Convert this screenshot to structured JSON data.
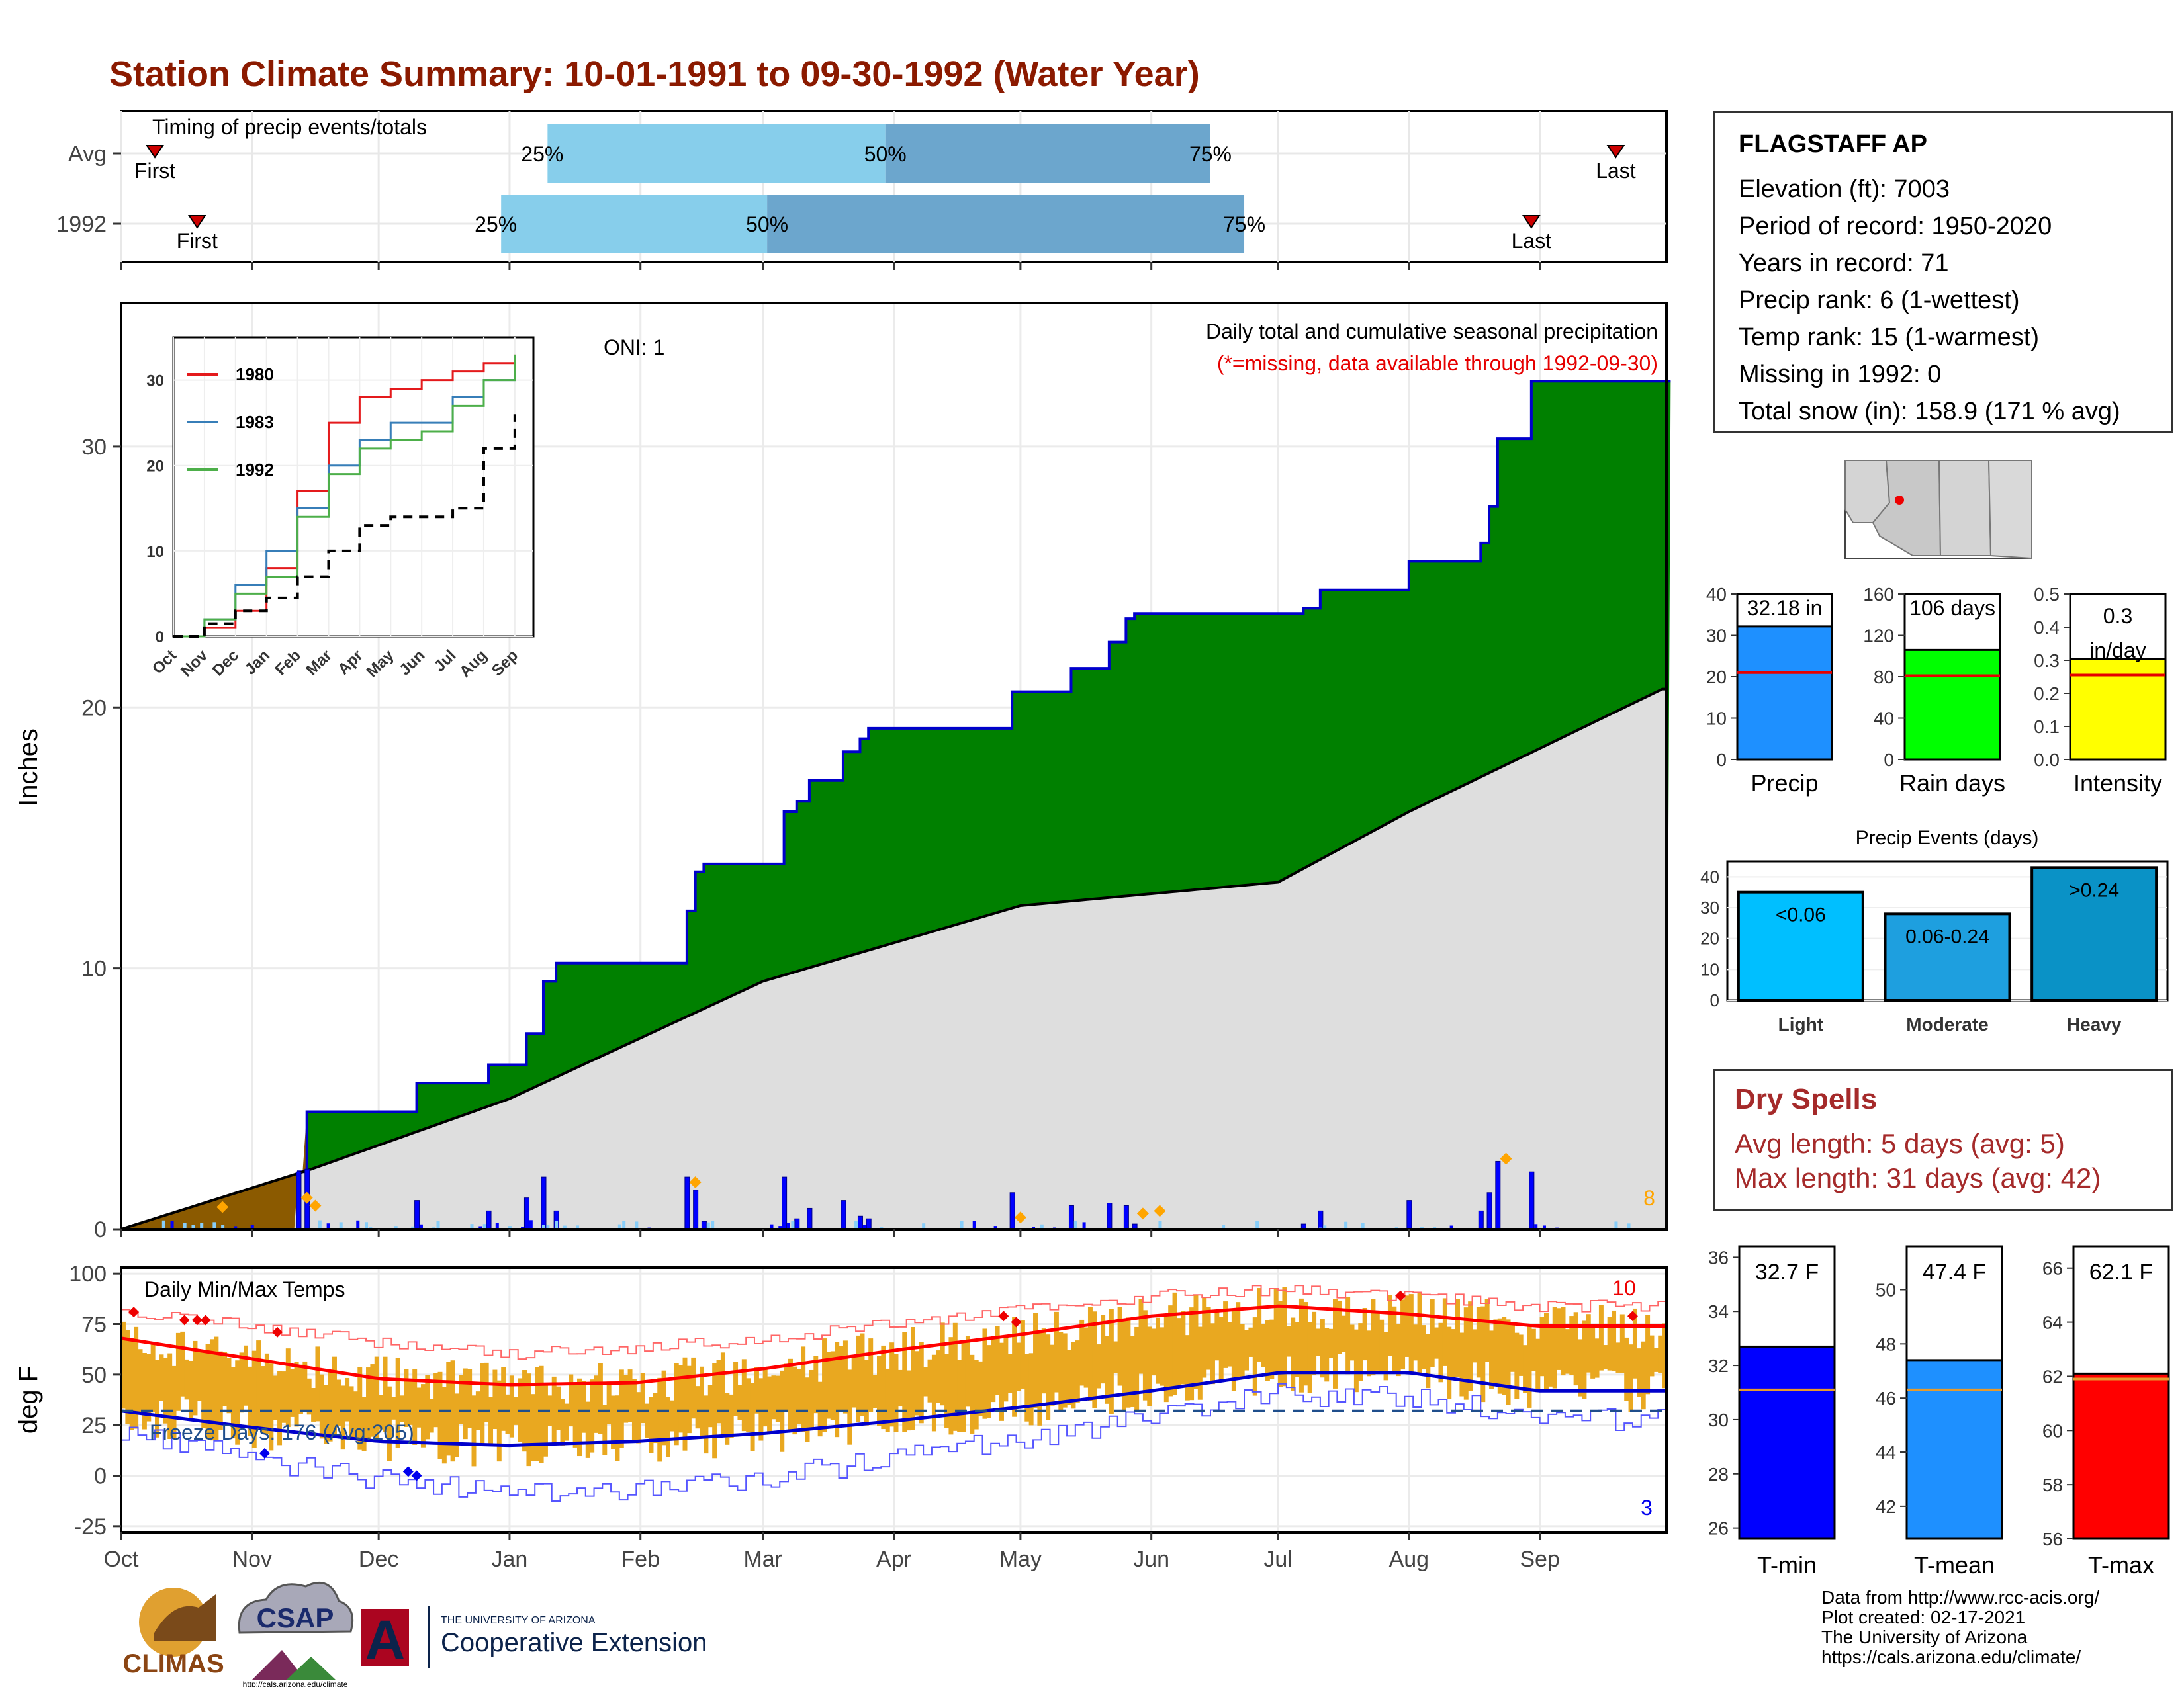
{
  "title": "Station Climate Summary: 10-01-1991 to 09-30-1992 (Water Year)",
  "timing": {
    "label": "Timing of precip events/totals",
    "rows": [
      {
        "name": "Avg",
        "first_day": 8,
        "q25_day": 101,
        "q50_day": 181,
        "q75_day": 258,
        "last_day": 354,
        "first_label": "First",
        "last_label": "Last",
        "q25_label": "25%",
        "q50_label": "50%",
        "q75_label": "75%"
      },
      {
        "name": "1992",
        "first_day": 18,
        "q25_day": 90,
        "q50_day": 153,
        "q75_day": 266,
        "last_day": 334,
        "first_label": "First",
        "last_label": "Last",
        "q25_label": "25%",
        "q50_label": "50%",
        "q75_label": "75%"
      }
    ]
  },
  "precip_chart": {
    "annotation_right": "Daily total and cumulative seasonal precipitation",
    "annotation_missing": "(*=missing, data available through 1992-09-30)",
    "oni_label": "ONI: 1",
    "ylabel": "Inches",
    "y_ticks": [
      "0",
      "10",
      "20",
      "30"
    ],
    "corner_count": "8",
    "months": [
      "Oct",
      "Nov",
      "Dec",
      "Jan",
      "Feb",
      "Mar",
      "Apr",
      "May",
      "Jun",
      "Jul",
      "Aug",
      "Sep"
    ]
  },
  "inset_chart": {
    "legend": [
      {
        "name": "1980",
        "color": "#e41a1c"
      },
      {
        "name": "1983",
        "color": "#377eb8"
      },
      {
        "name": "1992",
        "color": "#4daf4a"
      }
    ],
    "y_ticks": [
      "0",
      "10",
      "20",
      "30"
    ],
    "months": [
      "Oct",
      "Nov",
      "Dec",
      "Jan",
      "Feb",
      "Mar",
      "Apr",
      "May",
      "Jun",
      "Jul",
      "Aug",
      "Sep"
    ]
  },
  "temp_chart": {
    "label": "Daily Min/Max Temps",
    "freeze_label": "Freeze Days: 176 (Avg:205)",
    "ylabel": "deg F",
    "y_ticks": [
      "-25",
      "0",
      "25",
      "50",
      "75",
      "100"
    ],
    "high_count": "10",
    "low_count": "3",
    "months": [
      "Oct",
      "Nov",
      "Dec",
      "Jan",
      "Feb",
      "Mar",
      "Apr",
      "May",
      "Jun",
      "Jul",
      "Aug",
      "Sep"
    ]
  },
  "station": {
    "name": "FLAGSTAFF AP",
    "lines": [
      "Elevation (ft): 7003",
      "Period of record: 1950-2020",
      "Years in record: 71",
      "Precip rank: 6 (1-wettest)",
      "Temp rank: 15 (1-warmest)",
      "Missing in 1992: 0",
      "Total snow (in): 158.9 (171 % avg)"
    ]
  },
  "summary_bars": [
    {
      "name": "Precip",
      "value_label": "32.18 in",
      "value": 32.18,
      "avg": 21,
      "ymax": 40,
      "ticks": [
        "0",
        "10",
        "20",
        "30",
        "40"
      ],
      "color": "#1e90ff"
    },
    {
      "name": "Rain days",
      "value_label": "106 days",
      "value": 106,
      "avg": 81,
      "ymax": 160,
      "ticks": [
        "0",
        "40",
        "80",
        "120",
        "160"
      ],
      "color": "#00ff00"
    },
    {
      "name": "Intensity",
      "value_label": "0.3 in/day",
      "value": 0.303,
      "avg": 0.255,
      "ymax": 0.5,
      "ticks": [
        "0.0",
        "0.1",
        "0.2",
        "0.3",
        "0.4",
        "0.5"
      ],
      "color": "#ffff00"
    }
  ],
  "precip_events": {
    "title": "Precip Events (days)",
    "categories": [
      "Light",
      "Moderate",
      "Heavy"
    ],
    "labels": [
      "<0.06",
      "0.06-0.24",
      ">0.24"
    ],
    "values": [
      35,
      28,
      43
    ],
    "colors": [
      "#00bfff",
      "#1e9fdf",
      "#0a92c6"
    ],
    "ticks": [
      "0",
      "10",
      "20",
      "30",
      "40"
    ]
  },
  "dry_spells": {
    "title": "Dry Spells",
    "lines": [
      "Avg length: 5 days (avg: 5)",
      "Max length: 31 days (avg: 42)"
    ]
  },
  "temp_bars": [
    {
      "name": "T-min",
      "value_label": "32.7 F",
      "value": 32.7,
      "avg": 31.1,
      "ymin": 25.6,
      "ymax": 36.4,
      "ticks": [
        "26",
        "28",
        "30",
        "32",
        "34",
        "36"
      ],
      "color": "#0000ff"
    },
    {
      "name": "T-mean",
      "value_label": "47.4 F",
      "value": 47.4,
      "avg": 46.3,
      "ymin": 40.8,
      "ymax": 51.6,
      "ticks": [
        "42",
        "44",
        "46",
        "48",
        "50"
      ],
      "color": "#1e90ff"
    },
    {
      "name": "T-max",
      "value_label": "62.1 F",
      "value": 62.1,
      "avg": 61.9,
      "ymin": 56,
      "ymax": 66.8,
      "ticks": [
        "56",
        "58",
        "60",
        "62",
        "64",
        "66"
      ],
      "color": "#ff0000"
    }
  ],
  "logos": {
    "climas": "CLIMAS",
    "csap": "CSAP",
    "csap_url": "http://cals.arizona.edu/climate",
    "ua_small": "THE UNIVERSITY OF ARIZONA",
    "ua_big": "Cooperative Extension",
    "ua_letter": "A"
  },
  "credits": [
    "Data from http://www.rcc-acis.org/",
    "Plot created: 02-17-2021",
    "The University of Arizona",
    "https://cals.arizona.edu/climate/"
  ],
  "chart_data": [
    {
      "type": "area",
      "title": "Daily total and cumulative seasonal precipitation",
      "ylabel": "Inches",
      "ylim": [
        0,
        35.5
      ],
      "series": [
        {
          "name": "",
          "x": [
            "1991-10-01",
            "1991-11-12",
            "1991-11-14",
            "1991-12-10",
            "1991-12-27",
            "1992-01-05",
            "1992-01-09",
            "1992-01-12",
            "1992-02-12",
            "1992-02-14",
            "1992-02-16",
            "1992-02-19",
            "1992-03-06",
            "1992-03-09",
            "1992-03-12",
            "1992-03-20",
            "1992-03-24",
            "1992-03-26",
            "1992-03-31",
            "1992-04-29",
            "1992-05-13",
            "1992-05-22",
            "1992-05-26",
            "1992-05-28",
            "1992-07-07",
            "1992-07-11",
            "1992-08-01",
            "1992-08-18",
            "1992-08-20",
            "1992-08-22",
            "1992-08-30",
            "1992-09-30"
          ],
          "y": [
            0,
            2.2,
            4.5,
            5.6,
            6.3,
            7.5,
            9.5,
            10.2,
            12.2,
            13.7,
            14.0,
            14.0,
            16.0,
            16.4,
            17.2,
            18.3,
            18.8,
            19.2,
            19.2,
            20.6,
            21.5,
            22.5,
            23.4,
            23.6,
            23.8,
            24.5,
            25.6,
            26.3,
            27.7,
            30.3,
            32.5,
            32.5
          ]
        },
        {
          "name": "",
          "x": [
            "1991-10-01",
            "1991-11-15",
            "1992-01-01",
            "1992-03-01",
            "1992-05-01",
            "1992-07-01",
            "1992-08-01",
            "1992-09-30"
          ],
          "y": [
            0,
            2.3,
            5.0,
            9.5,
            12.4,
            13.3,
            16.0,
            20.7
          ]
        }
      ]
    },
    {
      "type": "line",
      "categories": [
        "Oct",
        "Nov",
        "Dec",
        "Jan",
        "Feb",
        "Mar",
        "Apr",
        "May",
        "Jun",
        "Jul",
        "Aug",
        "Sep"
      ],
      "ylim": [
        0,
        35
      ],
      "series": [
        {
          "name": "1980",
          "values": [
            0,
            1,
            3,
            8,
            17,
            25,
            28,
            29,
            30,
            31,
            32,
            33
          ]
        },
        {
          "name": "1983",
          "values": [
            0,
            2,
            6,
            10,
            15,
            20,
            23,
            25,
            25,
            28,
            30,
            32
          ]
        },
        {
          "name": "1992",
          "values": [
            0,
            2,
            5,
            7,
            14,
            19,
            22,
            23,
            24,
            27,
            30,
            33
          ]
        },
        {
          "name": "",
          "values": [
            0,
            1.5,
            3,
            4.5,
            7,
            10,
            13,
            14,
            14,
            15,
            22,
            26
          ]
        }
      ]
    },
    {
      "type": "line",
      "title": "Daily Min/Max Temps",
      "ylabel": "deg F",
      "categories": [
        "Oct",
        "Nov",
        "Dec",
        "Jan",
        "Feb",
        "Mar",
        "Apr",
        "May",
        "Jun",
        "Jul",
        "Aug",
        "Sep"
      ],
      "ylim": [
        -25,
        100
      ],
      "series": [
        {
          "name": "",
          "values": [
            68,
            58,
            48,
            45,
            46,
            53,
            62,
            70,
            79,
            84,
            80,
            74
          ]
        },
        {
          "name": "",
          "values": [
            32,
            24,
            17,
            15,
            17,
            21,
            27,
            34,
            42,
            51,
            51,
            42
          ]
        },
        {
          "name": "",
          "values": [
            82,
            74,
            66,
            60,
            63,
            68,
            75,
            83,
            89,
            92,
            89,
            84
          ]
        },
        {
          "name": "",
          "values": [
            22,
            8,
            -2,
            -8,
            -7,
            0,
            8,
            18,
            28,
            40,
            40,
            28
          ]
        }
      ],
      "freeze_line": 32
    },
    {
      "type": "bar",
      "title": "Precip Events (days)",
      "categories": [
        "Light",
        "Moderate",
        "Heavy"
      ],
      "values": [
        35,
        28,
        43
      ],
      "ylim": [
        0,
        45
      ]
    }
  ]
}
